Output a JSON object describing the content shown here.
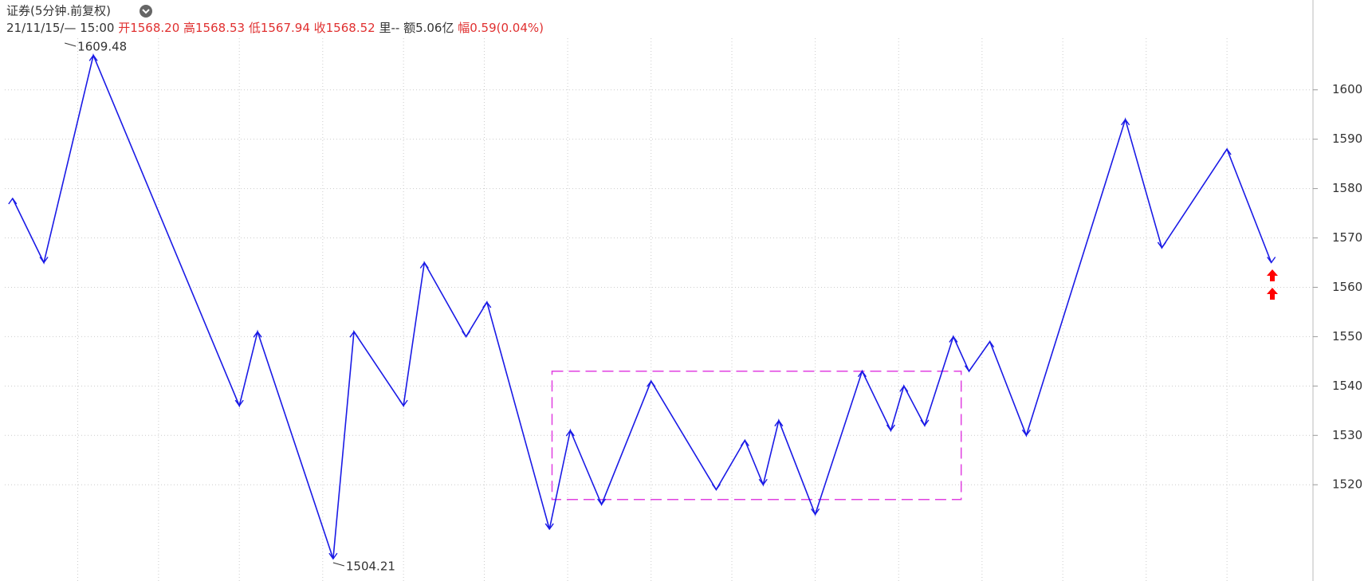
{
  "chart_data": {
    "type": "line",
    "title": "证券(5分钟.前复权)",
    "header": [
      "21/11/15/— 15:00",
      "开1568.20",
      "高1568.53",
      "低1567.94",
      "收1568.52",
      "里--",
      "额5.06亿",
      "幅0.59(0.04%)"
    ],
    "header_colors": [
      "#333333",
      "#e03030",
      "#e03030",
      "#e03030",
      "#e03030",
      "#333333",
      "#333333",
      "#e03030"
    ],
    "series": [
      {
        "name": "zigzag",
        "color": "#1a1ae6",
        "x": [
          3,
          15,
          34,
          90,
          97,
          126,
          134,
          153,
          161,
          177,
          185,
          209,
          217,
          229,
          248,
          273,
          284,
          291,
          297,
          311,
          329,
          340,
          345,
          353,
          364,
          370,
          378,
          392,
          430,
          444,
          469,
          486
        ],
        "values": [
          1578,
          1565,
          1607,
          1536,
          1551,
          1505,
          1551,
          1536,
          1565,
          1550,
          1557,
          1511,
          1531,
          1516,
          1541,
          1519,
          1529,
          1520,
          1533,
          1514,
          1543,
          1531,
          1540,
          1532,
          1550,
          1543,
          1549,
          1530,
          1594,
          1568,
          1588,
          1565
        ]
      }
    ],
    "extremes": [
      {
        "x": 23,
        "value": 1609.48
      },
      {
        "x": 126,
        "value": 1504.21
      }
    ],
    "box": {
      "x": [
        210,
        367
      ],
      "values": [
        1543,
        1517
      ],
      "color": "#e040e0"
    },
    "xlim": [
      0,
      502
    ],
    "ylim": [
      1500.5,
      1618.2
    ],
    "yticks": [
      1520,
      1530,
      1540,
      1550,
      1560,
      1570,
      1580,
      1590,
      1600
    ],
    "xticks": [
      28,
      59,
      90,
      122,
      153,
      184,
      216,
      248,
      279,
      311,
      343,
      375,
      406,
      438,
      469
    ],
    "grid": true
  }
}
